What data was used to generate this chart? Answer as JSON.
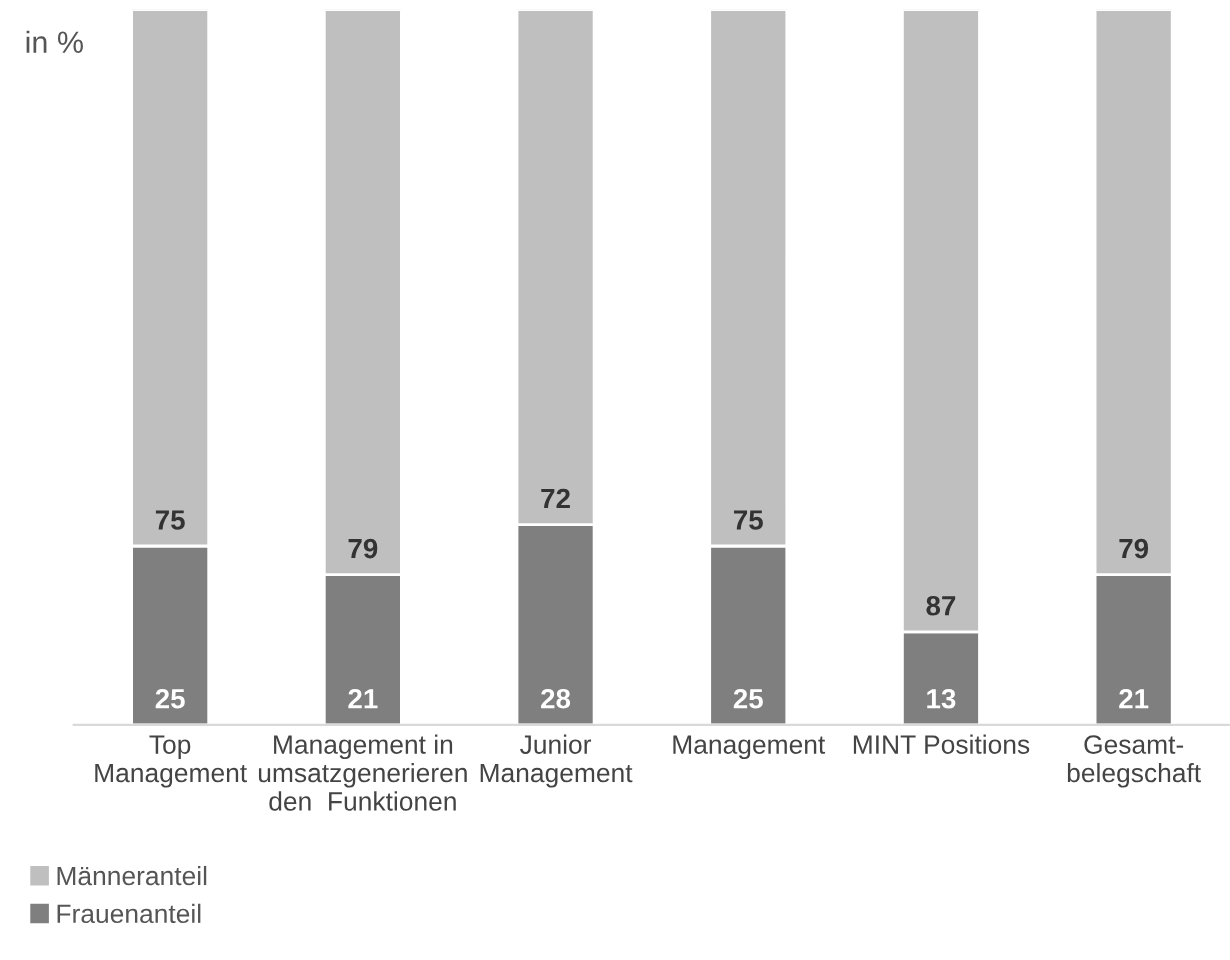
{
  "chart_data": {
    "type": "bar",
    "subtitle": "in %",
    "stacked": true,
    "data_labels": true,
    "legend": "bottom left",
    "grid": false,
    "categories": [
      "Top\nManagement",
      "Management in\numsatzgenerieren\nden  Funktionen",
      "Junior\nManagement",
      "Management",
      "MINT Positions",
      "Gesamt-\nbelegschaft"
    ],
    "series": [
      {
        "name": "Frauenanteil",
        "color": "#7f7f7f",
        "values": [
          25,
          21,
          28,
          25,
          13,
          21
        ]
      },
      {
        "name": "Männeranteil",
        "color": "#bfbfbf",
        "values": [
          75,
          79,
          72,
          75,
          87,
          79
        ]
      }
    ]
  }
}
